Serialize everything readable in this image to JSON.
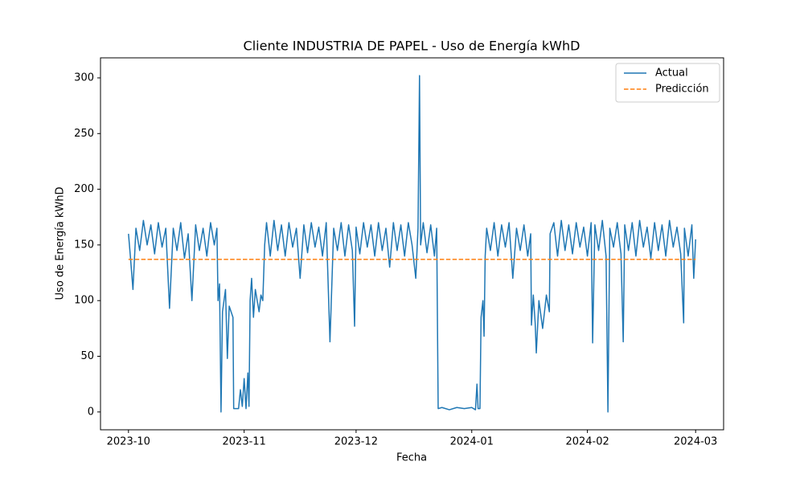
{
  "chart_data": {
    "type": "line",
    "title": "Cliente INDUSTRIA DE PAPEL - Uso de Energía kWhD",
    "x_label": "Fecha",
    "y_label": "Uso de Energía kWhD",
    "xlim": [
      -7.5,
      159.5
    ],
    "ylim": [
      -16,
      318
    ],
    "xticks": [
      {
        "value": 0,
        "label": "2023-10"
      },
      {
        "value": 31,
        "label": "2023-11"
      },
      {
        "value": 61,
        "label": "2023-12"
      },
      {
        "value": 92,
        "label": "2024-01"
      },
      {
        "value": 123,
        "label": "2024-02"
      },
      {
        "value": 152,
        "label": "2024-03"
      }
    ],
    "yticks": [
      0,
      50,
      100,
      150,
      200,
      250,
      300
    ],
    "legend": "upper right",
    "series": [
      {
        "name": "Actual",
        "color": "#1f77b4",
        "dashed": false,
        "x": [
          0,
          0.5,
          1.2,
          2,
          3,
          4,
          5,
          6,
          7,
          8,
          9,
          10,
          11,
          12,
          13,
          14,
          15,
          16,
          17,
          18,
          19,
          20,
          21,
          22,
          23,
          23.7,
          24,
          24.4,
          24.8,
          25.2,
          26,
          26.5,
          27,
          28,
          28.2,
          29.5,
          30,
          30.5,
          31,
          31.5,
          32,
          32.3,
          32.6,
          33,
          33.5,
          34,
          35,
          35.5,
          36,
          36.5,
          37,
          38,
          39,
          40,
          41,
          42,
          43,
          44,
          45,
          46,
          47,
          48,
          49,
          50,
          51,
          52,
          53,
          54,
          55,
          56,
          57,
          58,
          59,
          60,
          60.6,
          61,
          62,
          63,
          64,
          65,
          66,
          67,
          68,
          69,
          70,
          71,
          72,
          73,
          74,
          75,
          76,
          77,
          77.6,
          78,
          78.3,
          79,
          80,
          81,
          82,
          82.6,
          83,
          84,
          86,
          88,
          90,
          92,
          93,
          93.4,
          93.7,
          94.2,
          94.5,
          95,
          95.3,
          95.6,
          96,
          97,
          98,
          99,
          100,
          101,
          102,
          103,
          104,
          105,
          106,
          107,
          107.8,
          108,
          108.5,
          109,
          109.3,
          110,
          111,
          112,
          112.8,
          113,
          114,
          115,
          116,
          117,
          118,
          119,
          120,
          121,
          122,
          123,
          124,
          124.4,
          125,
          126,
          127,
          128,
          128.5,
          129,
          130,
          131,
          132,
          132.6,
          133,
          134,
          135,
          136,
          137,
          138,
          139,
          140,
          141,
          142,
          143,
          144,
          145,
          146,
          147,
          148,
          148.8,
          149,
          150,
          151,
          151.5,
          152
        ],
        "values": [
          160,
          140,
          110,
          165,
          145,
          172,
          150,
          168,
          142,
          170,
          148,
          165,
          93,
          165,
          145,
          170,
          138,
          160,
          100,
          168,
          145,
          165,
          140,
          170,
          150,
          165,
          100,
          115,
          0,
          90,
          110,
          48,
          95,
          85,
          3,
          3,
          20,
          5,
          30,
          3,
          35,
          5,
          100,
          120,
          85,
          110,
          90,
          105,
          100,
          150,
          170,
          140,
          172,
          145,
          168,
          140,
          170,
          148,
          165,
          120,
          168,
          143,
          170,
          148,
          166,
          140,
          170,
          63,
          165,
          145,
          170,
          140,
          168,
          145,
          77,
          166,
          142,
          170,
          148,
          168,
          140,
          170,
          145,
          165,
          130,
          170,
          145,
          168,
          140,
          170,
          150,
          120,
          165,
          302,
          150,
          170,
          143,
          168,
          140,
          165,
          3,
          4,
          2,
          4,
          3,
          4,
          2,
          25,
          3,
          3,
          85,
          100,
          68,
          140,
          165,
          145,
          170,
          140,
          168,
          148,
          170,
          120,
          165,
          145,
          168,
          140,
          160,
          78,
          105,
          80,
          53,
          100,
          75,
          105,
          90,
          160,
          170,
          140,
          172,
          145,
          168,
          142,
          170,
          148,
          166,
          140,
          170,
          62,
          168,
          145,
          172,
          140,
          0,
          165,
          148,
          170,
          142,
          63,
          168,
          145,
          170,
          140,
          172,
          148,
          166,
          138,
          170,
          145,
          168,
          140,
          172,
          148,
          166,
          142,
          80,
          165,
          140,
          168,
          120,
          155
        ]
      },
      {
        "name": "Predicción",
        "color": "#ff7f0e",
        "dashed": true,
        "x": [
          0,
          152
        ],
        "values": [
          137,
          137
        ]
      }
    ]
  }
}
